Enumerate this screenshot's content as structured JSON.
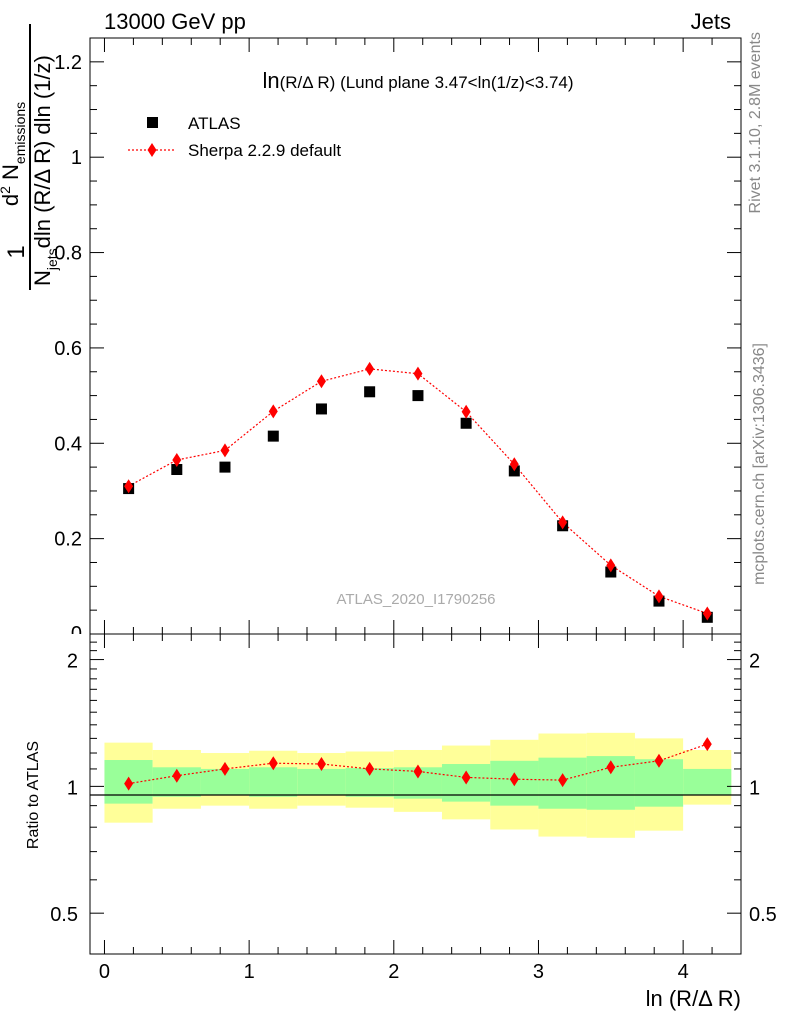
{
  "header": {
    "left": "13000 GeV pp",
    "right": "Jets"
  },
  "side_labels": {
    "rivet": "Rivet 3.1.10,  2.8M events",
    "mcplots": "mcplots.cern.ch [arXiv:1306.3436]"
  },
  "plot_title": {
    "prefix": "ln",
    "var": "(R/Δ R)",
    "rest": " (Lund plane 3.47<ln(1/z)<3.74)"
  },
  "watermark": "ATLAS_2020_I1790256",
  "ylabel_top": {
    "one": "1",
    "n_jets": "N",
    "jets_sub": "jets",
    "dln_den": "dln (R/Δ R) dln (1/z)",
    "d2": "d",
    "sup2": "2",
    "n_em": "N",
    "em_sub": "emissions"
  },
  "ylabel_ratio": "Ratio to ATLAS",
  "xlabel": "ln (R/Δ R)",
  "colors": {
    "data": "#000000",
    "mc": "#ff0000",
    "band_outer": "#ffff99",
    "band_inner": "#99ff99"
  },
  "chart_data": [
    {
      "type": "scatter",
      "panel": "main",
      "xlim": [
        -0.1,
        4.4
      ],
      "ylim": [
        0,
        1.25
      ],
      "xticks": [
        0,
        1,
        2,
        3,
        4
      ],
      "yticks": [
        0.2,
        0.4,
        0.6,
        0.8,
        1,
        1.2
      ],
      "ytick_labels": [
        "0.2",
        "0.4",
        "0.6",
        "0.8",
        "1",
        "1.2"
      ],
      "legend": "top-left",
      "series": [
        {
          "name": "ATLAS",
          "marker": "square",
          "x": [
            0.167,
            0.5,
            0.833,
            1.167,
            1.5,
            1.833,
            2.167,
            2.5,
            2.833,
            3.167,
            3.5,
            3.833,
            4.167
          ],
          "y": [
            0.305,
            0.345,
            0.35,
            0.415,
            0.472,
            0.508,
            0.5,
            0.442,
            0.342,
            0.227,
            0.13,
            0.069,
            0.035
          ]
        },
        {
          "name": "Sherpa 2.2.9 default",
          "marker": "diamond",
          "line": "dotted",
          "x": [
            0.167,
            0.5,
            0.833,
            1.167,
            1.5,
            1.833,
            2.167,
            2.5,
            2.833,
            3.167,
            3.5,
            3.833,
            4.167
          ],
          "y": [
            0.31,
            0.365,
            0.385,
            0.467,
            0.53,
            0.556,
            0.546,
            0.466,
            0.356,
            0.234,
            0.144,
            0.079,
            0.043
          ]
        }
      ]
    },
    {
      "type": "line",
      "panel": "ratio",
      "xlim": [
        -0.1,
        4.4
      ],
      "ylim": [
        0.4,
        2.3
      ],
      "log_y": true,
      "xticks": [
        0,
        1,
        2,
        3,
        4
      ],
      "xtick_labels": [
        "0",
        "1",
        "2",
        "3",
        "4"
      ],
      "yticks": [
        0.5,
        1,
        2
      ],
      "ytick_labels": [
        "0.5",
        "1",
        "2"
      ],
      "bin_edges": [
        0,
        0.333,
        0.667,
        1.0,
        1.333,
        1.667,
        2.0,
        2.333,
        2.667,
        3.0,
        3.333,
        3.667,
        4.0,
        4.333
      ],
      "band_outer": {
        "low": [
          0.82,
          0.885,
          0.9,
          0.885,
          0.9,
          0.89,
          0.87,
          0.835,
          0.79,
          0.76,
          0.755,
          0.785,
          0.905
        ],
        "high": [
          1.27,
          1.22,
          1.2,
          1.215,
          1.2,
          1.21,
          1.22,
          1.25,
          1.29,
          1.335,
          1.34,
          1.3,
          1.22
        ]
      },
      "band_inner": {
        "low": [
          0.91,
          0.945,
          0.955,
          0.945,
          0.955,
          0.945,
          0.935,
          0.92,
          0.9,
          0.885,
          0.88,
          0.895,
          0.955
        ],
        "high": [
          1.155,
          1.11,
          1.1,
          1.11,
          1.1,
          1.105,
          1.11,
          1.13,
          1.15,
          1.17,
          1.18,
          1.16,
          1.1
        ]
      },
      "series": [
        {
          "name": "Sherpa 2.2.9 default",
          "x": [
            0.167,
            0.5,
            0.833,
            1.167,
            1.5,
            1.833,
            2.167,
            2.5,
            2.833,
            3.167,
            3.5,
            3.833,
            4.167
          ],
          "y": [
            1.015,
            1.06,
            1.1,
            1.135,
            1.13,
            1.1,
            1.085,
            1.05,
            1.04,
            1.035,
            1.11,
            1.15,
            1.26
          ]
        }
      ]
    }
  ]
}
